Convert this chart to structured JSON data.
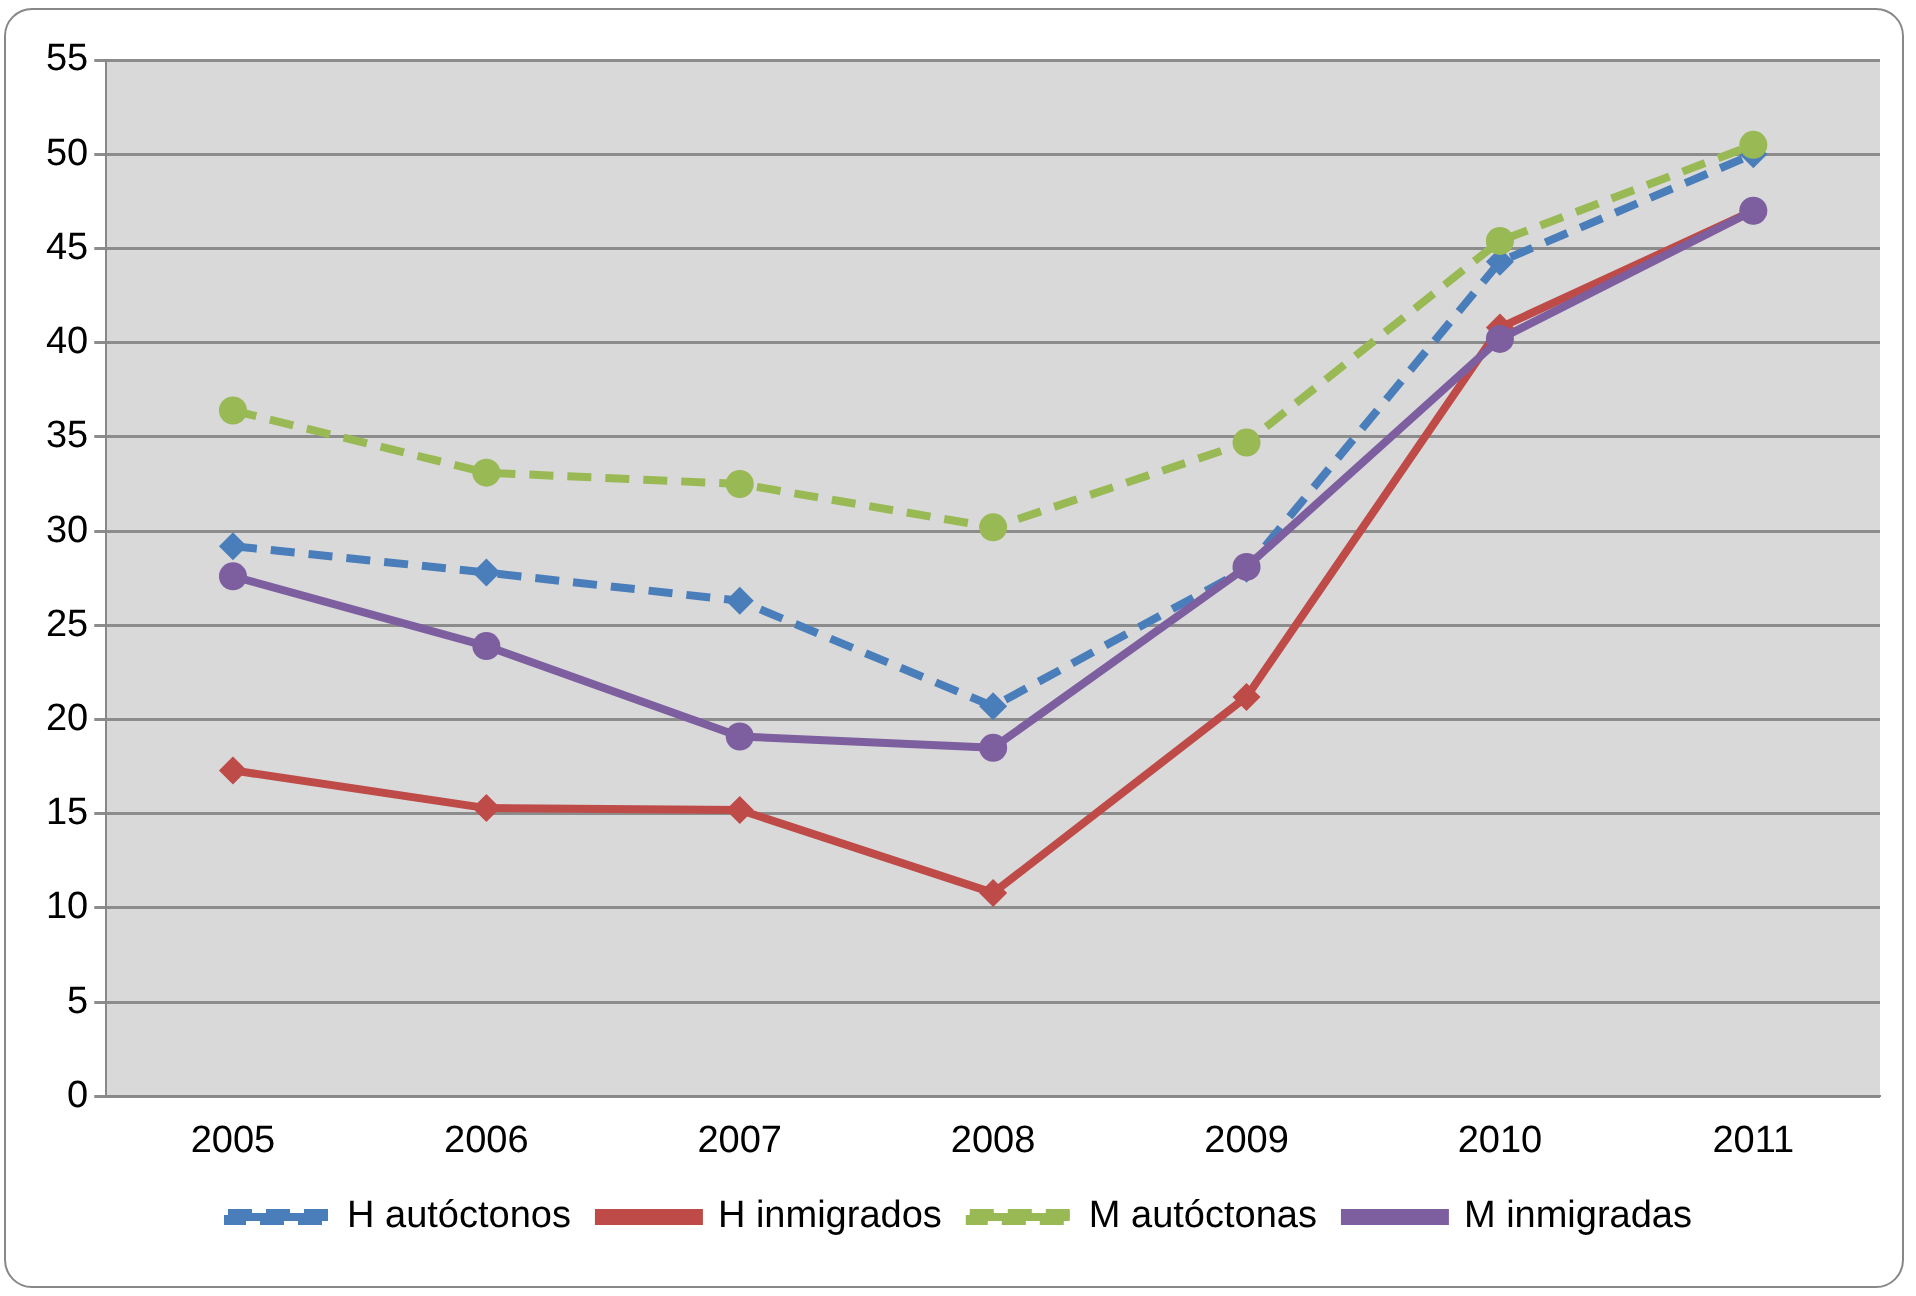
{
  "chart_data": {
    "type": "line",
    "categories": [
      "2005",
      "2006",
      "2007",
      "2008",
      "2009",
      "2010",
      "2011"
    ],
    "series": [
      {
        "name": "H autóctonos",
        "color": "#4a7ebb",
        "marker": "diamond",
        "line_style": "dashed",
        "values": [
          29.2,
          27.8,
          26.3,
          20.7,
          28.0,
          44.3,
          50.0
        ]
      },
      {
        "name": "H inmigrados",
        "color": "#be4b48",
        "marker": "diamond",
        "line_style": "solid",
        "values": [
          17.3,
          15.3,
          15.2,
          10.8,
          21.2,
          40.8,
          47.0
        ]
      },
      {
        "name": "M autóctonas",
        "color": "#98b954",
        "marker": "circle",
        "line_style": "dashed",
        "values": [
          36.4,
          33.1,
          32.5,
          30.2,
          34.7,
          45.4,
          50.5
        ]
      },
      {
        "name": "M inmigradas",
        "color": "#7d5fa0",
        "marker": "circle",
        "line_style": "solid",
        "values": [
          27.6,
          23.9,
          19.1,
          18.5,
          28.1,
          40.2,
          47.0
        ]
      }
    ],
    "ylim": [
      0,
      55
    ],
    "yticks": [
      0,
      5,
      10,
      15,
      20,
      25,
      30,
      35,
      40,
      45,
      50,
      55
    ],
    "grid": "y",
    "legend": "bottom"
  }
}
